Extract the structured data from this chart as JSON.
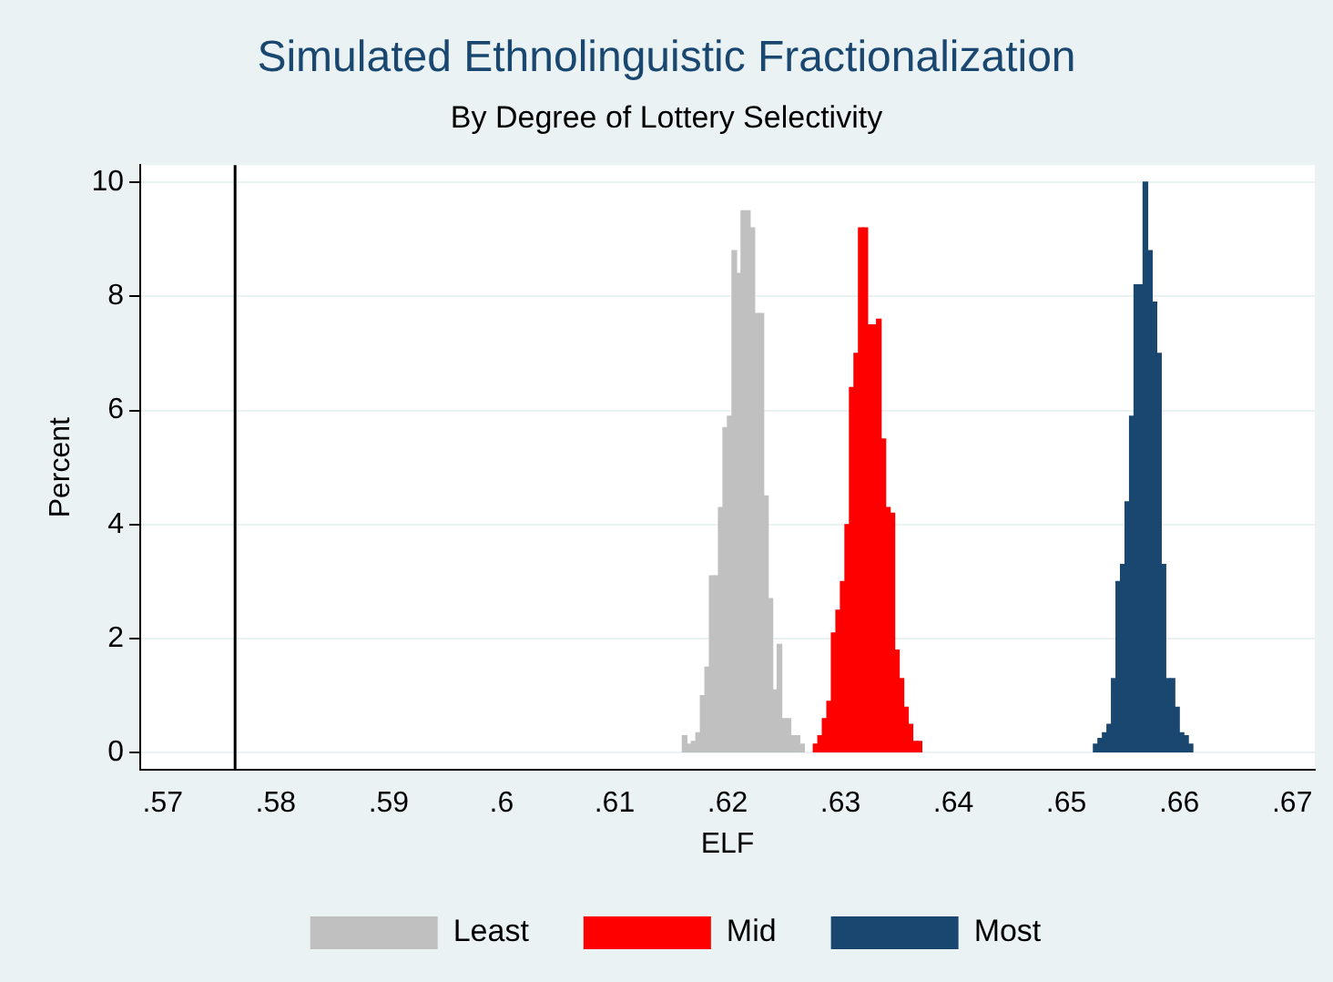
{
  "chart_data": {
    "type": "histogram",
    "title": "Simulated Ethnolinguistic Fractionalization",
    "subtitle": "By Degree of Lottery Selectivity",
    "xlabel": "ELF",
    "ylabel": "Percent",
    "xlim": [
      0.568,
      0.672
    ],
    "xticks": [
      {
        "value": 0.57,
        "label": ".57"
      },
      {
        "value": 0.58,
        "label": ".58"
      },
      {
        "value": 0.59,
        "label": ".59"
      },
      {
        "value": 0.6,
        "label": ".6"
      },
      {
        "value": 0.61,
        "label": ".61"
      },
      {
        "value": 0.62,
        "label": ".62"
      },
      {
        "value": 0.63,
        "label": ".63"
      },
      {
        "value": 0.64,
        "label": ".64"
      },
      {
        "value": 0.65,
        "label": ".65"
      },
      {
        "value": 0.66,
        "label": ".66"
      },
      {
        "value": 0.67,
        "label": ".67"
      }
    ],
    "ylim": [
      -0.3,
      10.3
    ],
    "yticks": [
      0,
      2,
      4,
      6,
      8,
      10
    ],
    "grid": "y",
    "legend": "bottom",
    "ref_lines": [
      {
        "axis": "x",
        "value": 0.5764,
        "color": "#000000"
      }
    ],
    "bins": [
      0.616,
      0.6164,
      0.6168,
      0.6172,
      0.6176,
      0.618,
      0.6184,
      0.6188,
      0.6192,
      0.6196,
      0.62,
      0.6204,
      0.6208,
      0.6212,
      0.6216,
      0.622,
      0.6224,
      0.6228,
      0.6232,
      0.6236,
      0.624,
      0.6244,
      0.6248,
      0.6252,
      0.6256,
      0.626,
      0.6264,
      0.6268,
      0.6272,
      0.6276,
      0.628,
      0.6284,
      0.6288,
      0.6292,
      0.6296,
      0.63,
      0.6304,
      0.6308,
      0.6312,
      0.6316,
      0.632,
      0.6324,
      0.6328,
      0.6332,
      0.6336,
      0.634,
      0.6344,
      0.6348,
      0.6352,
      0.6356,
      0.636,
      0.6364,
      0.6368,
      0.6372,
      0.6376,
      0.638,
      0.6384,
      0.6388,
      0.6392,
      0.6396,
      0.64,
      0.6404,
      0.6408,
      0.6412,
      0.6416,
      0.642,
      0.6424,
      0.6428,
      0.6432,
      0.6436,
      0.644,
      0.6444,
      0.6448,
      0.6452,
      0.6456,
      0.646,
      0.6464,
      0.6468,
      0.6472,
      0.6476,
      0.648,
      0.6484,
      0.6488,
      0.6492,
      0.6496,
      0.65,
      0.6504,
      0.6508,
      0.6512,
      0.6516,
      0.652,
      0.6524,
      0.6528,
      0.6532,
      0.6536,
      0.654,
      0.6544,
      0.6548,
      0.6552,
      0.6556,
      0.656,
      0.6564,
      0.6568,
      0.6572,
      0.6576,
      0.658,
      0.6584,
      0.6588,
      0.6592,
      0.6596,
      0.66,
      0.6604,
      0.6608,
      0.6612
    ],
    "series": [
      {
        "name": "Least",
        "color": "#c0c0c0",
        "values": [
          0.3,
          0.15,
          0.2,
          0.35,
          1.0,
          1.5,
          3.1,
          3.1,
          4.3,
          5.7,
          5.9,
          8.8,
          8.4,
          9.5,
          9.5,
          9.2,
          7.7,
          7.7,
          4.5,
          2.7,
          1.1,
          1.9,
          0.6,
          0.6,
          0.3,
          0.3,
          0.15,
          null,
          null,
          null,
          null,
          null,
          null,
          null,
          null,
          null,
          null,
          null,
          null,
          null,
          null,
          null,
          null,
          null,
          null,
          null,
          null,
          null,
          null,
          null,
          null,
          null,
          null,
          null,
          null,
          null,
          null,
          null,
          null,
          null,
          null,
          null,
          null,
          null,
          null,
          null,
          null,
          null,
          null,
          null,
          null,
          null,
          null,
          null,
          null,
          null,
          null,
          null,
          null,
          null,
          null,
          null,
          null,
          null,
          null,
          null,
          null,
          null,
          null,
          null,
          null,
          null,
          null,
          null,
          null,
          null,
          null,
          null,
          null,
          null,
          null,
          null,
          null,
          null,
          null,
          null,
          null,
          null,
          null,
          null,
          null,
          null,
          null
        ]
      },
      {
        "name": "Mid",
        "color": "#ff0000",
        "values": [
          null,
          null,
          null,
          null,
          null,
          null,
          null,
          null,
          null,
          null,
          null,
          null,
          null,
          null,
          null,
          null,
          null,
          null,
          null,
          null,
          null,
          null,
          null,
          null,
          null,
          null,
          null,
          null,
          null,
          0.15,
          0.3,
          0.6,
          0.9,
          2.1,
          2.5,
          3.0,
          4.0,
          6.4,
          7.0,
          9.2,
          9.2,
          7.5,
          7.5,
          7.6,
          5.5,
          4.3,
          4.2,
          1.8,
          1.3,
          0.8,
          0.5,
          0.2,
          0.2,
          null,
          null,
          null,
          null,
          null,
          null,
          null,
          null,
          null,
          null,
          null,
          null,
          null,
          null,
          null,
          null,
          null,
          null,
          null,
          null,
          null,
          null,
          null,
          null,
          null,
          null,
          null,
          null,
          null,
          null,
          null,
          null,
          null,
          null,
          null,
          null,
          null,
          null,
          null,
          null,
          null,
          null,
          null,
          null,
          null,
          null,
          null,
          null,
          null,
          null,
          null,
          null,
          null,
          null,
          null,
          null,
          null,
          null,
          null,
          null
        ]
      },
      {
        "name": "Most",
        "color": "#1a476f",
        "values": [
          null,
          null,
          null,
          null,
          null,
          null,
          null,
          null,
          null,
          null,
          null,
          null,
          null,
          null,
          null,
          null,
          null,
          null,
          null,
          null,
          null,
          null,
          null,
          null,
          null,
          null,
          null,
          null,
          null,
          null,
          null,
          null,
          null,
          null,
          null,
          null,
          null,
          null,
          null,
          null,
          null,
          null,
          null,
          null,
          null,
          null,
          null,
          null,
          null,
          null,
          null,
          null,
          null,
          null,
          null,
          null,
          null,
          null,
          null,
          null,
          null,
          null,
          null,
          null,
          null,
          null,
          null,
          null,
          null,
          null,
          null,
          null,
          null,
          null,
          null,
          null,
          null,
          null,
          null,
          null,
          null,
          null,
          null,
          null,
          null,
          null,
          null,
          null,
          null,
          null,
          null,
          0.15,
          0.25,
          0.35,
          0.5,
          1.3,
          3.0,
          3.3,
          4.4,
          5.9,
          8.2,
          8.2,
          10.0,
          8.8,
          7.9,
          7.0,
          3.3,
          1.3,
          1.3,
          0.8,
          0.35,
          0.3,
          0.15
        ]
      }
    ]
  }
}
